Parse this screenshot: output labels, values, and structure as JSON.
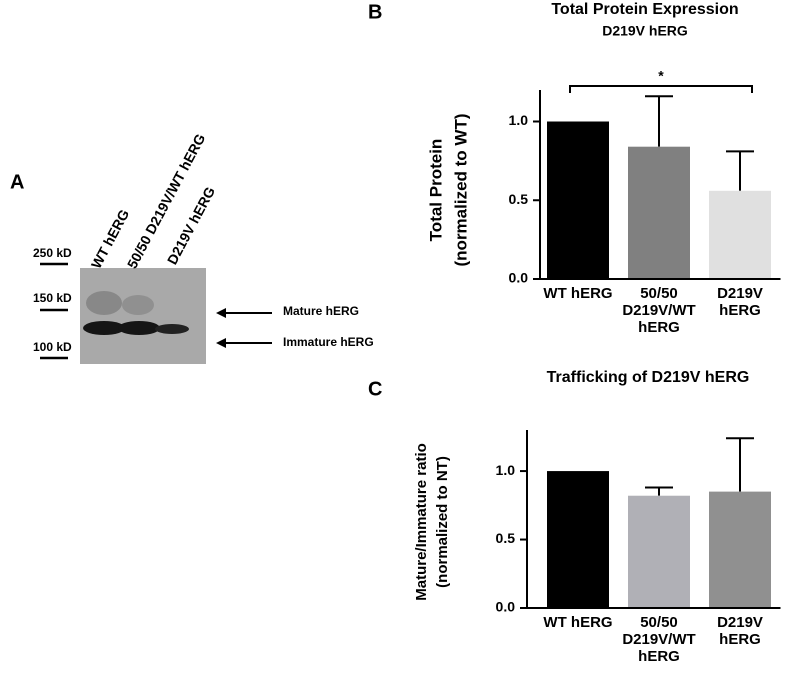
{
  "panel_labels": [
    "A",
    "B",
    "C"
  ],
  "blot": {
    "lanes": [
      "WT hERG",
      "50/50 D219V/WT hERG",
      "D219V hERG"
    ],
    "markers": [
      "250 kD",
      "150 kD",
      "100 kD"
    ],
    "arrows": [
      "Mature hERG",
      "Immature hERG"
    ]
  },
  "chart_data": [
    {
      "type": "bar",
      "title": "Total Protein Expression",
      "subtitle": "D219V hERG",
      "ylabel": [
        "Total Protein",
        "(normalized to WT)"
      ],
      "categories": [
        "WT hERG",
        "50/50 D219V/WT hERG",
        "D219V hERG"
      ],
      "values": [
        1.0,
        0.84,
        0.56
      ],
      "errors": [
        null,
        0.32,
        0.25
      ],
      "colors": [
        "#000000",
        "#808080",
        "#e0e0e0"
      ],
      "ylim": [
        0,
        1.2
      ],
      "yticks": [
        {
          "value": 0,
          "label": "0.0"
        },
        {
          "value": 0.5,
          "label": "0.5"
        },
        {
          "value": 1,
          "label": "1.0"
        }
      ],
      "annotation": "*"
    },
    {
      "type": "bar",
      "title": "Trafficking of D219V hERG",
      "ylabel": [
        "Mature/Immature ratio",
        "(normalized to NT)"
      ],
      "categories": [
        "WT hERG",
        "50/50 D219V/WT hERG",
        "D219V hERG"
      ],
      "values": [
        1.0,
        0.82,
        0.85
      ],
      "errors": [
        null,
        0.06,
        0.39
      ],
      "colors": [
        "#000000",
        "#b0b0b6",
        "#909090"
      ],
      "ylim": [
        0,
        1.3
      ],
      "yticks": [
        {
          "value": 0,
          "label": "0.0"
        },
        {
          "value": 0.5,
          "label": "0.5"
        },
        {
          "value": 1,
          "label": "1.0"
        }
      ]
    }
  ]
}
